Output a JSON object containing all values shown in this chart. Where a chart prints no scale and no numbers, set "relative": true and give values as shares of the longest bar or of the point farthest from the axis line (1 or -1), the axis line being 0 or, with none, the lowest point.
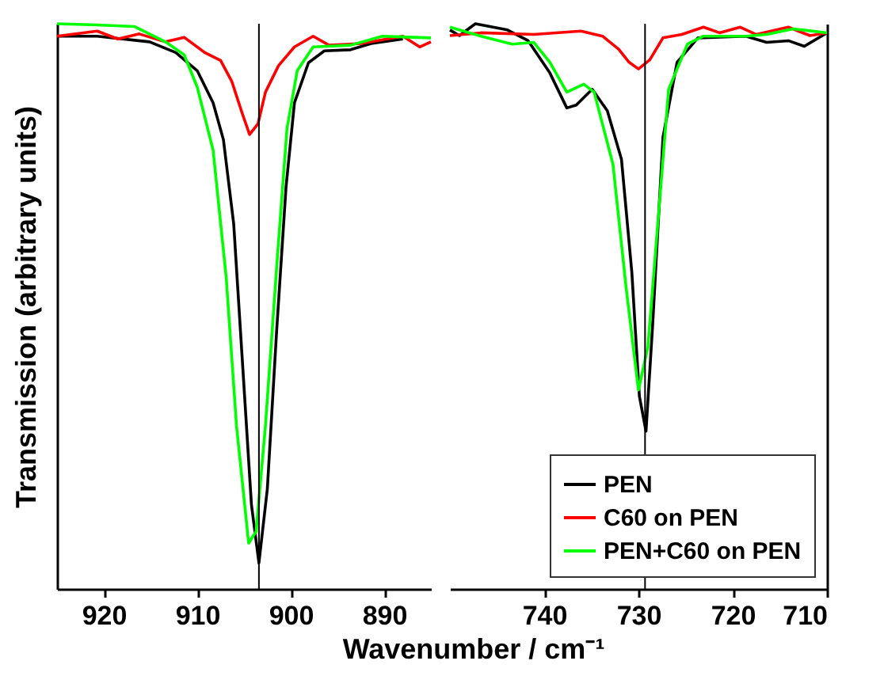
{
  "chart_data": [
    {
      "type": "line",
      "relative": true,
      "ylabel": "Transmission (arbitrary units)",
      "xlabel": "Wavenumber / cm⁻¹",
      "xlim": [
        925,
        885
      ],
      "xticks": [
        920,
        910,
        900,
        890
      ],
      "tick_labels": "x",
      "legend": false,
      "grid": false,
      "ref_lines": [
        {
          "axis": "x",
          "value": 903.4,
          "color": "#000000"
        }
      ],
      "series": [
        {
          "color": "#000000",
          "x": [
            925,
            920.7,
            915.1,
            912.3,
            910,
            908.3,
            907.2,
            906.1,
            905.2,
            904.2,
            903.4,
            902.5,
            901.5,
            900.5,
            899.6,
            898.1,
            896.4,
            893.6,
            891.4,
            888
          ],
          "values": [
            0.978,
            0.978,
            0.968,
            0.949,
            0.917,
            0.86,
            0.795,
            0.646,
            0.411,
            0.149,
            0.046,
            0.177,
            0.458,
            0.711,
            0.86,
            0.931,
            0.952,
            0.954,
            0.965,
            0.973
          ]
        },
        {
          "color": "#ff0000",
          "x": [
            925,
            920.7,
            918.5,
            916.2,
            913.4,
            911.4,
            909.2,
            907.5,
            906.3,
            905.2,
            904.4,
            903.5,
            902.7,
            901.3,
            899.6,
            897.6,
            895.9,
            892.5,
            888,
            886.2,
            885
          ],
          "values": [
            0.978,
            0.987,
            0.973,
            0.982,
            0.968,
            0.976,
            0.949,
            0.935,
            0.898,
            0.842,
            0.804,
            0.823,
            0.879,
            0.926,
            0.959,
            0.978,
            0.962,
            0.965,
            0.978,
            0.959,
            0.968
          ]
        },
        {
          "color": "#00ff00",
          "x": [
            925,
            920.7,
            916.7,
            913.4,
            911.4,
            910,
            908.3,
            906.9,
            905.8,
            904.5,
            903.7,
            902.7,
            901.5,
            900.4,
            899.3,
            897.6,
            893.6,
            890.2,
            885
          ],
          "values": [
            1,
            0.998,
            0.995,
            0.968,
            0.945,
            0.888,
            0.776,
            0.551,
            0.289,
            0.081,
            0.102,
            0.289,
            0.57,
            0.814,
            0.917,
            0.959,
            0.962,
            0.978,
            0.975
          ]
        }
      ]
    },
    {
      "type": "line",
      "relative": true,
      "xlim": [
        750,
        710
      ],
      "xticks": [
        740,
        730,
        720,
        710
      ],
      "tick_labels": "x",
      "legend": "bottom right",
      "grid": false,
      "ref_lines": [
        {
          "axis": "x",
          "value": 729.3,
          "color": "#000000"
        }
      ],
      "series": [
        {
          "name": "PEN",
          "color": "#000000",
          "x": [
            750,
            749,
            747.3,
            743.9,
            741.7,
            739.4,
            737.6,
            736.6,
            734.9,
            733.3,
            731.8,
            730.7,
            729.9,
            729.2,
            728.5,
            727.4,
            725.9,
            723.7,
            718.6,
            716.4,
            714.1,
            712.4,
            710
          ],
          "values": [
            0.989,
            0.979,
            1,
            0.989,
            0.97,
            0.913,
            0.851,
            0.856,
            0.884,
            0.846,
            0.76,
            0.56,
            0.341,
            0.279,
            0.465,
            0.799,
            0.932,
            0.975,
            0.978,
            0.967,
            0.97,
            0.96,
            0.984
          ]
        },
        {
          "name": "C60 on PEN",
          "color": "#ff0000",
          "x": [
            750,
            746.7,
            741.1,
            736.1,
            733.8,
            732.1,
            731,
            730,
            728.8,
            727.4,
            725.4,
            723.1,
            721.4,
            719.2,
            717.5,
            714.1,
            711.8,
            710
          ],
          "values": [
            0.979,
            0.984,
            0.981,
            0.987,
            0.978,
            0.955,
            0.932,
            0.92,
            0.936,
            0.975,
            0.981,
            0.994,
            0.984,
            0.994,
            0.981,
            0.994,
            0.979,
            0.984
          ]
        },
        {
          "name": "PEN+C60 on PEN",
          "color": "#00ff00",
          "x": [
            750,
            746.7,
            743.4,
            741.1,
            739.4,
            737.6,
            735.8,
            734.7,
            732.7,
            731.3,
            730,
            729,
            727.9,
            726.8,
            724.8,
            723.1,
            718.6,
            716.4,
            713.6,
            710
          ],
          "values": [
            0.994,
            0.978,
            0.964,
            0.967,
            0.932,
            0.879,
            0.893,
            0.879,
            0.751,
            0.532,
            0.352,
            0.428,
            0.656,
            0.884,
            0.964,
            0.978,
            0.978,
            0.981,
            0.991,
            0.984
          ]
        }
      ]
    }
  ]
}
